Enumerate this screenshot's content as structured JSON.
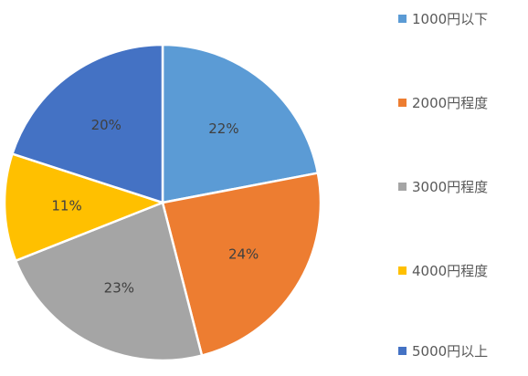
{
  "chart_data": {
    "type": "pie",
    "title": "",
    "categories": [
      "1000円以下",
      "2000円程度",
      "3000円程度",
      "4000円程度",
      "5000円以上"
    ],
    "values": [
      22,
      24,
      23,
      11,
      20
    ],
    "labels": [
      "22%",
      "24%",
      "23%",
      "11%",
      "20%"
    ],
    "colors": [
      "#5B9BD5",
      "#ED7D31",
      "#A5A5A5",
      "#FFC000",
      "#4472C4"
    ],
    "start_angle_deg": 0,
    "direction": "clockwise",
    "legend_position": "right"
  },
  "legend": {
    "items": [
      {
        "label": "1000円以下",
        "color": "#5B9BD5"
      },
      {
        "label": "2000円程度",
        "color": "#ED7D31"
      },
      {
        "label": "3000円程度",
        "color": "#A5A5A5"
      },
      {
        "label": "4000円程度",
        "color": "#FFC000"
      },
      {
        "label": "5000円以上",
        "color": "#4472C4"
      }
    ]
  }
}
